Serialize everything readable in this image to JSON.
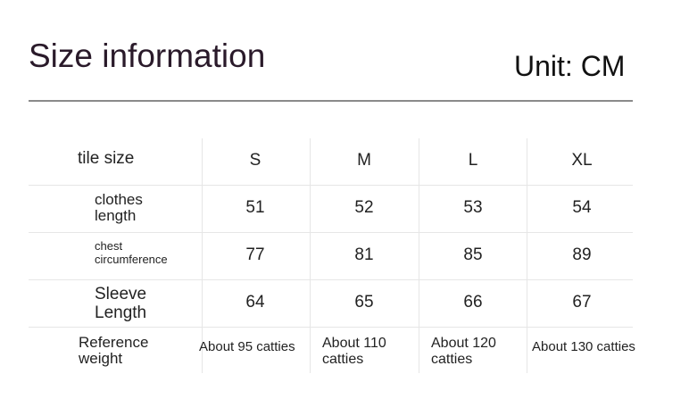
{
  "header": {
    "title": "Size information",
    "unit": "Unit: CM"
  },
  "table": {
    "columns": [
      "tile size",
      "S",
      "M",
      "L",
      "XL"
    ],
    "rows": [
      [
        "clothes length",
        51,
        52,
        53,
        54
      ],
      [
        "chest circumference",
        77,
        81,
        85,
        89
      ],
      [
        "Sleeve Length",
        64,
        65,
        66,
        67
      ],
      [
        "Reference weight",
        "About 95 catties",
        "About 110 catties",
        "About 120 catties",
        "About 130 catties"
      ]
    ]
  }
}
